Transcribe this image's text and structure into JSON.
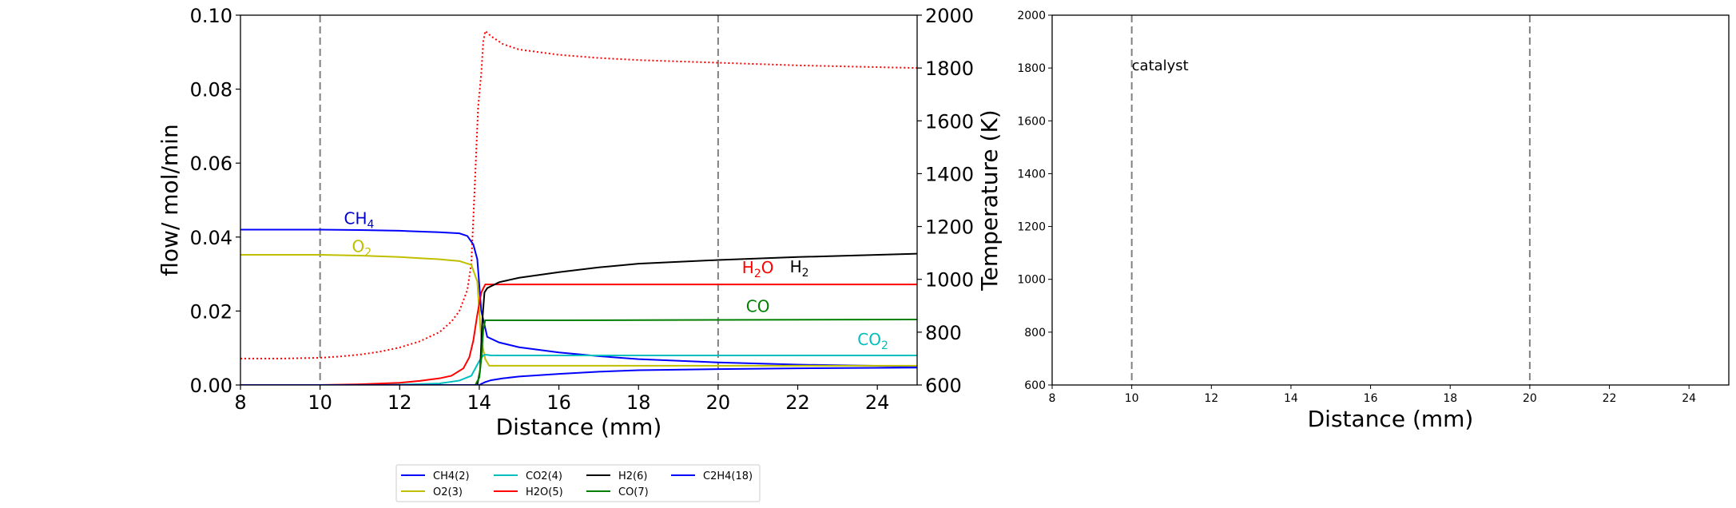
{
  "chart_data": [
    {
      "type": "line",
      "xlabel": "Distance (mm)",
      "ylabel": "flow/ mol/min",
      "y2label": "Temperature (K)",
      "xlim": [
        8,
        25
      ],
      "ylim": [
        0,
        0.1
      ],
      "y2lim": [
        600,
        2000
      ],
      "xticks": [
        8,
        10,
        12,
        14,
        16,
        18,
        20,
        22,
        24
      ],
      "xtick_labels": [
        "8",
        "10",
        "12",
        "14",
        "16",
        "18",
        "20",
        "22",
        "24"
      ],
      "yticks": [
        0,
        0.02,
        0.04,
        0.06,
        0.08,
        0.1
      ],
      "ytick_labels": [
        "0.00",
        "0.02",
        "0.04",
        "0.06",
        "0.08",
        "0.10"
      ],
      "y2ticks": [
        600,
        800,
        1000,
        1200,
        1400,
        1600,
        1800,
        2000
      ],
      "y2tick_labels": [
        "600",
        "800",
        "1000",
        "1200",
        "1400",
        "1600",
        "1800",
        "2000"
      ],
      "vlines": [
        10,
        20
      ],
      "grid": false,
      "legend_position": "below",
      "series": [
        {
          "name": "CH4(2)",
          "color": "#0000ff",
          "x": [
            8,
            10,
            11,
            12,
            12.5,
            13,
            13.5,
            13.7,
            13.85,
            13.95,
            14.05,
            14.2,
            14.5,
            15,
            16,
            17,
            18,
            20,
            22,
            25
          ],
          "y": [
            0.042,
            0.042,
            0.0419,
            0.0417,
            0.0415,
            0.0413,
            0.041,
            0.0403,
            0.038,
            0.034,
            0.02,
            0.013,
            0.0115,
            0.0102,
            0.0088,
            0.0078,
            0.007,
            0.0061,
            0.0055,
            0.005
          ]
        },
        {
          "name": "O2(3)",
          "color": "#bfbf00",
          "x": [
            8,
            10,
            11,
            12,
            12.5,
            13,
            13.5,
            13.8,
            13.95,
            14.05,
            14.15,
            14.25,
            16,
            20,
            25
          ],
          "y": [
            0.0352,
            0.0352,
            0.035,
            0.0346,
            0.0343,
            0.034,
            0.0335,
            0.0325,
            0.028,
            0.012,
            0.007,
            0.0052,
            0.0052,
            0.0052,
            0.0052
          ]
        },
        {
          "name": "CO2(4)",
          "color": "#00bfbf",
          "x": [
            8,
            11,
            12,
            13,
            13.5,
            13.8,
            14,
            14.1,
            14.15,
            14.3,
            16,
            20,
            25
          ],
          "y": [
            0,
            0,
            0.0001,
            0.0004,
            0.0012,
            0.0025,
            0.0065,
            0.008,
            0.0082,
            0.008,
            0.008,
            0.008,
            0.008
          ]
        },
        {
          "name": "H2O(5)",
          "color": "#ff0000",
          "x": [
            8,
            10,
            11,
            12,
            12.5,
            13,
            13.3,
            13.6,
            13.75,
            13.85,
            13.95,
            14.05,
            14.15,
            14.3,
            16,
            20,
            25
          ],
          "y": [
            0,
            0,
            0.0002,
            0.0006,
            0.0011,
            0.0018,
            0.0025,
            0.0045,
            0.0075,
            0.012,
            0.019,
            0.025,
            0.0272,
            0.0272,
            0.0272,
            0.0272,
            0.0272
          ]
        },
        {
          "name": "H2(6)",
          "color": "#000000",
          "x": [
            8,
            13.5,
            13.95,
            14.02,
            14.08,
            14.13,
            14.2,
            14.5,
            15,
            16,
            17,
            18,
            20,
            22,
            25
          ],
          "y": [
            0,
            0,
            0,
            0.004,
            0.018,
            0.025,
            0.0262,
            0.0278,
            0.029,
            0.0305,
            0.0318,
            0.0328,
            0.0338,
            0.0346,
            0.0355
          ]
        },
        {
          "name": "CO(7)",
          "color": "#007f00",
          "x": [
            8,
            13.9,
            14.0,
            14.06,
            14.1,
            14.15,
            14.3,
            16,
            20,
            25
          ],
          "y": [
            0,
            0,
            0.002,
            0.008,
            0.015,
            0.0175,
            0.0175,
            0.0175,
            0.0176,
            0.0177
          ]
        },
        {
          "name": "C2H4(18)",
          "color": "#0000ff",
          "x": [
            8,
            13.9,
            14.0,
            14.05,
            14.15,
            14.3,
            14.6,
            15,
            16,
            17,
            18,
            20,
            22,
            25
          ],
          "y": [
            0,
            0,
            0,
            0.0003,
            0.0008,
            0.0013,
            0.0018,
            0.0023,
            0.003,
            0.0036,
            0.004,
            0.0043,
            0.0045,
            0.0047
          ]
        }
      ],
      "temperature_series": {
        "color": "#ff0000",
        "style": "dotted",
        "axis": "right",
        "x": [
          8,
          9,
          10,
          10.5,
          11,
          11.5,
          12,
          12.5,
          13,
          13.3,
          13.5,
          13.7,
          13.8,
          13.9,
          13.97,
          14.05,
          14.1,
          14.15,
          14.3,
          14.6,
          15,
          16,
          17,
          18,
          20,
          22,
          25
        ],
        "y": [
          700,
          700,
          703,
          708,
          715,
          726,
          742,
          765,
          800,
          840,
          880,
          960,
          1060,
          1400,
          1650,
          1780,
          1900,
          1940,
          1920,
          1890,
          1870,
          1850,
          1838,
          1830,
          1820,
          1810,
          1800
        ]
      },
      "annotations": [
        {
          "text": "CH",
          "sub": "4",
          "color": "#0000cc",
          "x": 10.6,
          "y": 0.0435
        },
        {
          "text": "O",
          "sub": "2",
          "color": "#bfbf00",
          "x": 10.8,
          "y": 0.036
        },
        {
          "text": "H",
          "sub": "2",
          "suffix": "O",
          "color": "#ff0000",
          "x": 20.6,
          "y": 0.0302
        },
        {
          "text": "H",
          "sub": "2",
          "color": "#000000",
          "x": 21.8,
          "y": 0.0305
        },
        {
          "text": "CO",
          "color": "#007f00",
          "x": 20.7,
          "y": 0.0198
        },
        {
          "text": "CO",
          "sub": "2",
          "color": "#00bfbf",
          "x": 23.5,
          "y": 0.0108
        }
      ]
    },
    {
      "type": "line",
      "xlabel": "Distance (mm)",
      "xlim": [
        8,
        25
      ],
      "ylim": [
        600,
        2000
      ],
      "xticks": [
        8,
        10,
        12,
        14,
        16,
        18,
        20,
        22,
        24
      ],
      "xtick_labels": [
        "8",
        "10",
        "12",
        "14",
        "16",
        "18",
        "20",
        "22",
        "24"
      ],
      "yticks": [
        600,
        800,
        1000,
        1200,
        1400,
        1600,
        1800,
        2000
      ],
      "ytick_labels": [
        "600",
        "800",
        "1000",
        "1200",
        "1400",
        "1600",
        "1800",
        "2000"
      ],
      "vlines": [
        10,
        20
      ],
      "grid": false,
      "series": [],
      "annotations": [
        {
          "text": "catalyst",
          "color": "#000000",
          "x": 10,
          "y": 1800
        }
      ]
    }
  ],
  "legend": {
    "columns": 4,
    "entries": [
      {
        "label": "CH4(2)",
        "color": "#0000ff"
      },
      {
        "label": "O2(3)",
        "color": "#bfbf00"
      },
      {
        "label": "CO2(4)",
        "color": "#00bfbf"
      },
      {
        "label": "H2O(5)",
        "color": "#ff0000"
      },
      {
        "label": "H2(6)",
        "color": "#000000"
      },
      {
        "label": "CO(7)",
        "color": "#007f00"
      },
      {
        "label": "C2H4(18)",
        "color": "#0000ff"
      }
    ]
  }
}
